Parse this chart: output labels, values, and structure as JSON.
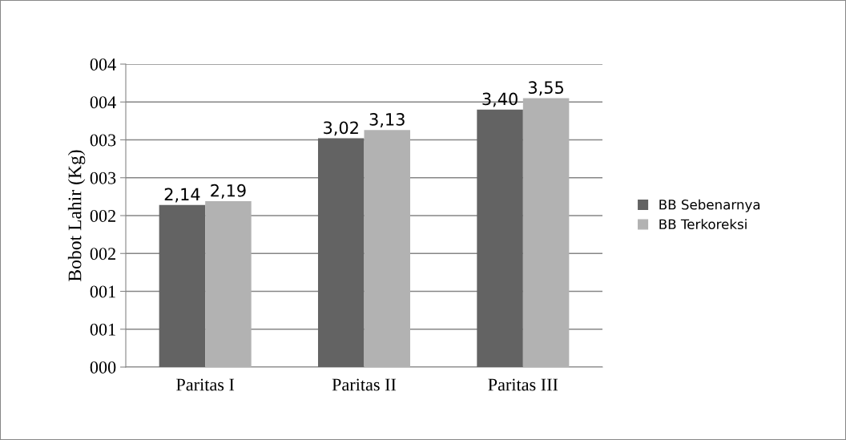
{
  "chart_data": {
    "type": "bar",
    "ylabel": "Bobot Lahir (Kg)",
    "categories": [
      "Paritas I",
      "Paritas II",
      "Paritas III"
    ],
    "series": [
      {
        "name": "BB Sebenarnya",
        "color": "#636363",
        "values": [
          2.14,
          3.02,
          3.4
        ],
        "value_labels": [
          "2,14",
          "3,02",
          "3,40"
        ]
      },
      {
        "name": "BB Terkoreksi",
        "color": "#b2b2b2",
        "values": [
          2.19,
          3.13,
          3.55
        ],
        "value_labels": [
          "2,19",
          "3,13",
          "3,55"
        ]
      }
    ],
    "ylim": [
      0,
      4
    ],
    "yticks": [
      {
        "value": 0,
        "label": "000"
      },
      {
        "value": 0.5,
        "label": "001"
      },
      {
        "value": 1,
        "label": "001"
      },
      {
        "value": 1.5,
        "label": "002"
      },
      {
        "value": 2,
        "label": "002"
      },
      {
        "value": 2.5,
        "label": "003"
      },
      {
        "value": 3,
        "label": "003"
      },
      {
        "value": 3.5,
        "label": "004"
      },
      {
        "value": 4,
        "label": "004"
      }
    ],
    "grid": "y",
    "legend": "right"
  }
}
